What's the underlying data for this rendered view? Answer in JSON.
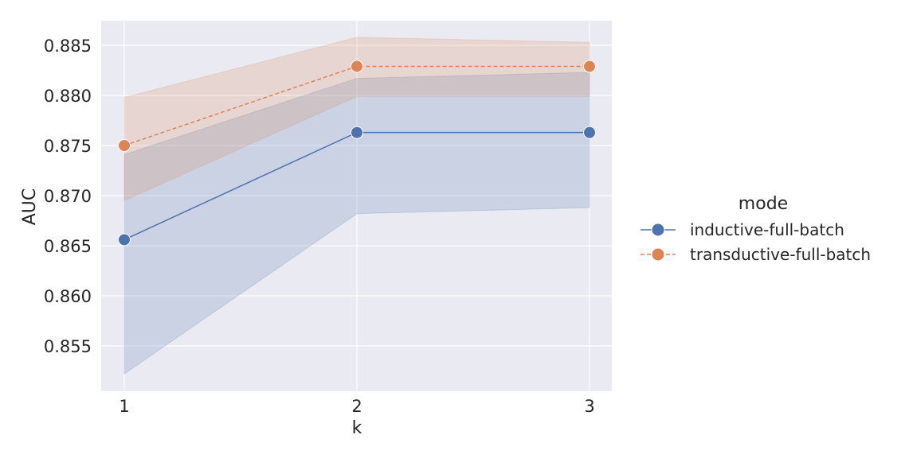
{
  "chart_data": {
    "type": "line",
    "title": "",
    "xlabel": "k",
    "ylabel": "AUC",
    "x": [
      1,
      2,
      3
    ],
    "xticks": [
      "1",
      "2",
      "3"
    ],
    "yticks": [
      "0.855",
      "0.860",
      "0.865",
      "0.870",
      "0.875",
      "0.880",
      "0.885"
    ],
    "ylim": [
      0.8505,
      0.8875
    ],
    "grid": true,
    "legend_position": "right",
    "legend_title": "mode",
    "series": [
      {
        "name": "inductive-full-batch",
        "color": "#4c72b0",
        "linestyle": "solid",
        "values": [
          0.8656,
          0.8763,
          0.8763
        ],
        "ci_upper": [
          0.8741,
          0.8817,
          0.8823
        ],
        "ci_lower": [
          0.8522,
          0.8682,
          0.8688
        ]
      },
      {
        "name": "transductive-full-batch",
        "color": "#dd8452",
        "linestyle": "dashed",
        "values": [
          0.875,
          0.8829,
          0.8829
        ],
        "ci_upper": [
          0.8798,
          0.8858,
          0.8853
        ],
        "ci_lower": [
          0.8695,
          0.8799,
          0.8799
        ]
      }
    ]
  },
  "legend": {
    "title": "mode",
    "items": [
      "inductive-full-batch",
      "transductive-full-batch"
    ]
  }
}
